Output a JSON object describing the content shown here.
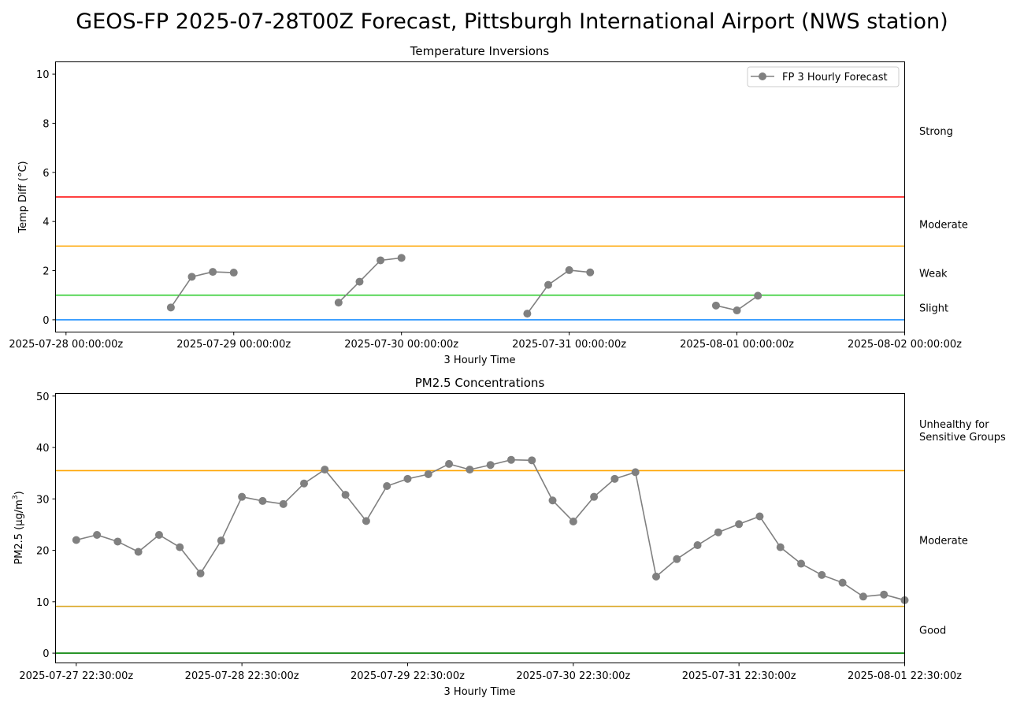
{
  "figure_title": "GEOS-FP 2025-07-28T00Z Forecast, Pittsburgh International Airport (NWS station)",
  "chart_data": [
    {
      "type": "line",
      "title": "Temperature Inversions",
      "xlabel": "3 Hourly Time",
      "ylabel": "Temp Diff (°C)",
      "ylim": [
        -0.5,
        10.5
      ],
      "yticks": [
        0,
        2,
        4,
        6,
        8,
        10
      ],
      "xlim": [
        "2025-07-27 22:30",
        "2025-08-02 00:00"
      ],
      "xticks": [
        {
          "t": "2025-07-28 00:00",
          "label": "2025-07-28 00:00:00z"
        },
        {
          "t": "2025-07-29 00:00",
          "label": "2025-07-29 00:00:00z"
        },
        {
          "t": "2025-07-30 00:00",
          "label": "2025-07-30 00:00:00z"
        },
        {
          "t": "2025-07-31 00:00",
          "label": "2025-07-31 00:00:00z"
        },
        {
          "t": "2025-08-01 00:00",
          "label": "2025-08-01 00:00:00z"
        },
        {
          "t": "2025-08-02 00:00",
          "label": "2025-08-02 00:00:00z"
        }
      ],
      "legend": {
        "position": "upper-right",
        "entries": [
          "FP 3 Hourly Forecast"
        ]
      },
      "series": [
        {
          "name": "FP 3 Hourly Forecast",
          "color": "#808080",
          "segments": [
            [
              [
                "2025-07-28 15:00",
                0.5
              ],
              [
                "2025-07-28 18:00",
                1.75
              ],
              [
                "2025-07-28 21:00",
                1.95
              ],
              [
                "2025-07-29 00:00",
                1.92
              ]
            ],
            [
              [
                "2025-07-29 15:00",
                0.7
              ],
              [
                "2025-07-29 18:00",
                1.55
              ],
              [
                "2025-07-29 21:00",
                2.42
              ],
              [
                "2025-07-30 00:00",
                2.52
              ]
            ],
            [
              [
                "2025-07-30 18:00",
                0.25
              ],
              [
                "2025-07-30 21:00",
                1.42
              ],
              [
                "2025-07-31 00:00",
                2.02
              ],
              [
                "2025-07-31 03:00",
                1.93
              ]
            ],
            [
              [
                "2025-07-31 21:00",
                0.58
              ],
              [
                "2025-08-01 00:00",
                0.38
              ],
              [
                "2025-08-01 03:00",
                0.98
              ]
            ]
          ]
        }
      ],
      "thresholds": [
        {
          "value": 0,
          "color": "#1e90ff"
        },
        {
          "value": 1,
          "color": "#32cd32"
        },
        {
          "value": 3,
          "color": "#ffa500"
        },
        {
          "value": 5,
          "color": "#ff0000"
        }
      ],
      "side_labels": [
        {
          "text": "Strong",
          "at": 7.7,
          "color": "#ff0000"
        },
        {
          "text": "Moderate",
          "at": 3.9,
          "color": "#ffa500"
        },
        {
          "text": "Weak",
          "at": 1.9,
          "color": "#32cd32"
        },
        {
          "text": "Slight",
          "at": 0.5,
          "color": "#1e90ff"
        }
      ]
    },
    {
      "type": "line",
      "title": "PM2.5 Concentrations",
      "xlabel": "3 Hourly Time",
      "ylabel": "PM2.5 (μg/m³)",
      "ylim": [
        -1.9,
        50.5
      ],
      "yticks": [
        0,
        10,
        20,
        30,
        40,
        50
      ],
      "xlim": [
        "2025-07-27 19:30",
        "2025-08-01 22:30"
      ],
      "xticks": [
        {
          "t": "2025-07-27 22:30",
          "label": "2025-07-27 22:30:00z"
        },
        {
          "t": "2025-07-28 22:30",
          "label": "2025-07-28 22:30:00z"
        },
        {
          "t": "2025-07-29 22:30",
          "label": "2025-07-29 22:30:00z"
        },
        {
          "t": "2025-07-30 22:30",
          "label": "2025-07-30 22:30:00z"
        },
        {
          "t": "2025-07-31 22:30",
          "label": "2025-07-31 22:30:00z"
        },
        {
          "t": "2025-08-01 22:30",
          "label": "2025-08-01 22:30:00z"
        }
      ],
      "series": [
        {
          "color": "#808080",
          "start": "2025-07-27 22:30",
          "step_hours": 3,
          "values": [
            22.0,
            23.0,
            21.7,
            19.7,
            23.0,
            20.6,
            15.5,
            21.9,
            30.4,
            29.6,
            29.0,
            33.0,
            35.7,
            30.8,
            25.7,
            32.5,
            33.9,
            34.8,
            36.8,
            35.7,
            36.6,
            37.6,
            37.5,
            29.7,
            25.6,
            30.4,
            33.9,
            35.2,
            14.9,
            18.3,
            21.0,
            23.5,
            25.1,
            26.6,
            20.6,
            17.4,
            15.2,
            13.7,
            11.0,
            11.4,
            10.3
          ]
        }
      ],
      "thresholds": [
        {
          "value": 0,
          "color": "#008000"
        },
        {
          "value": 9.1,
          "color": "#daa520"
        },
        {
          "value": 35.5,
          "color": "#ffa500"
        }
      ],
      "side_labels": [
        {
          "text": "Unhealthy for",
          "text2": "Sensitive Groups",
          "at": 43.5,
          "color": "#ffa500"
        },
        {
          "text": "Moderate",
          "at": 22.0,
          "color": "#daa520"
        },
        {
          "text": "Good",
          "at": 4.5,
          "color": "#008000"
        }
      ]
    }
  ]
}
